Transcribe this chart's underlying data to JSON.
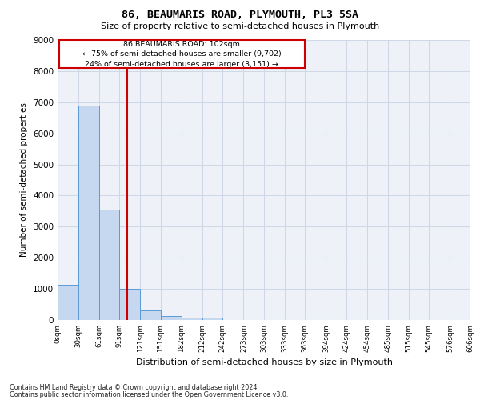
{
  "title_line1": "86, BEAUMARIS ROAD, PLYMOUTH, PL3 5SA",
  "title_line2": "Size of property relative to semi-detached houses in Plymouth",
  "xlabel": "Distribution of semi-detached houses by size in Plymouth",
  "ylabel": "Number of semi-detached properties",
  "footnote1": "Contains HM Land Registry data © Crown copyright and database right 2024.",
  "footnote2": "Contains public sector information licensed under the Open Government Licence v3.0.",
  "annotation_line1": "86 BEAUMARIS ROAD: 102sqm",
  "annotation_line2": "← 75% of semi-detached houses are smaller (9,702)",
  "annotation_line3": "24% of semi-detached houses are larger (3,151) →",
  "bin_edges": [
    0,
    30,
    61,
    91,
    121,
    151,
    182,
    212,
    242,
    273,
    303,
    333,
    363,
    394,
    424,
    454,
    485,
    515,
    545,
    576,
    606
  ],
  "bar_heights": [
    1120,
    6880,
    3560,
    1000,
    310,
    135,
    90,
    90,
    0,
    0,
    0,
    0,
    0,
    0,
    0,
    0,
    0,
    0,
    0,
    0
  ],
  "bar_color": "#c5d8f0",
  "bar_edge_color": "#5b9bd5",
  "grid_color": "#d0d8e8",
  "vline_color": "#cc0000",
  "vline_x": 102,
  "annotation_box_color": "#cc0000",
  "ylim": [
    0,
    9000
  ],
  "xlim": [
    0,
    606
  ],
  "background_color": "#eef2f8",
  "xtick_labels": [
    "0sqm",
    "30sqm",
    "61sqm",
    "91sqm",
    "121sqm",
    "151sqm",
    "182sqm",
    "212sqm",
    "242sqm",
    "273sqm",
    "303sqm",
    "333sqm",
    "363sqm",
    "394sqm",
    "424sqm",
    "454sqm",
    "485sqm",
    "515sqm",
    "545sqm",
    "576sqm",
    "606sqm"
  ],
  "yticks": [
    0,
    1000,
    2000,
    3000,
    4000,
    5000,
    6000,
    7000,
    8000,
    9000
  ]
}
